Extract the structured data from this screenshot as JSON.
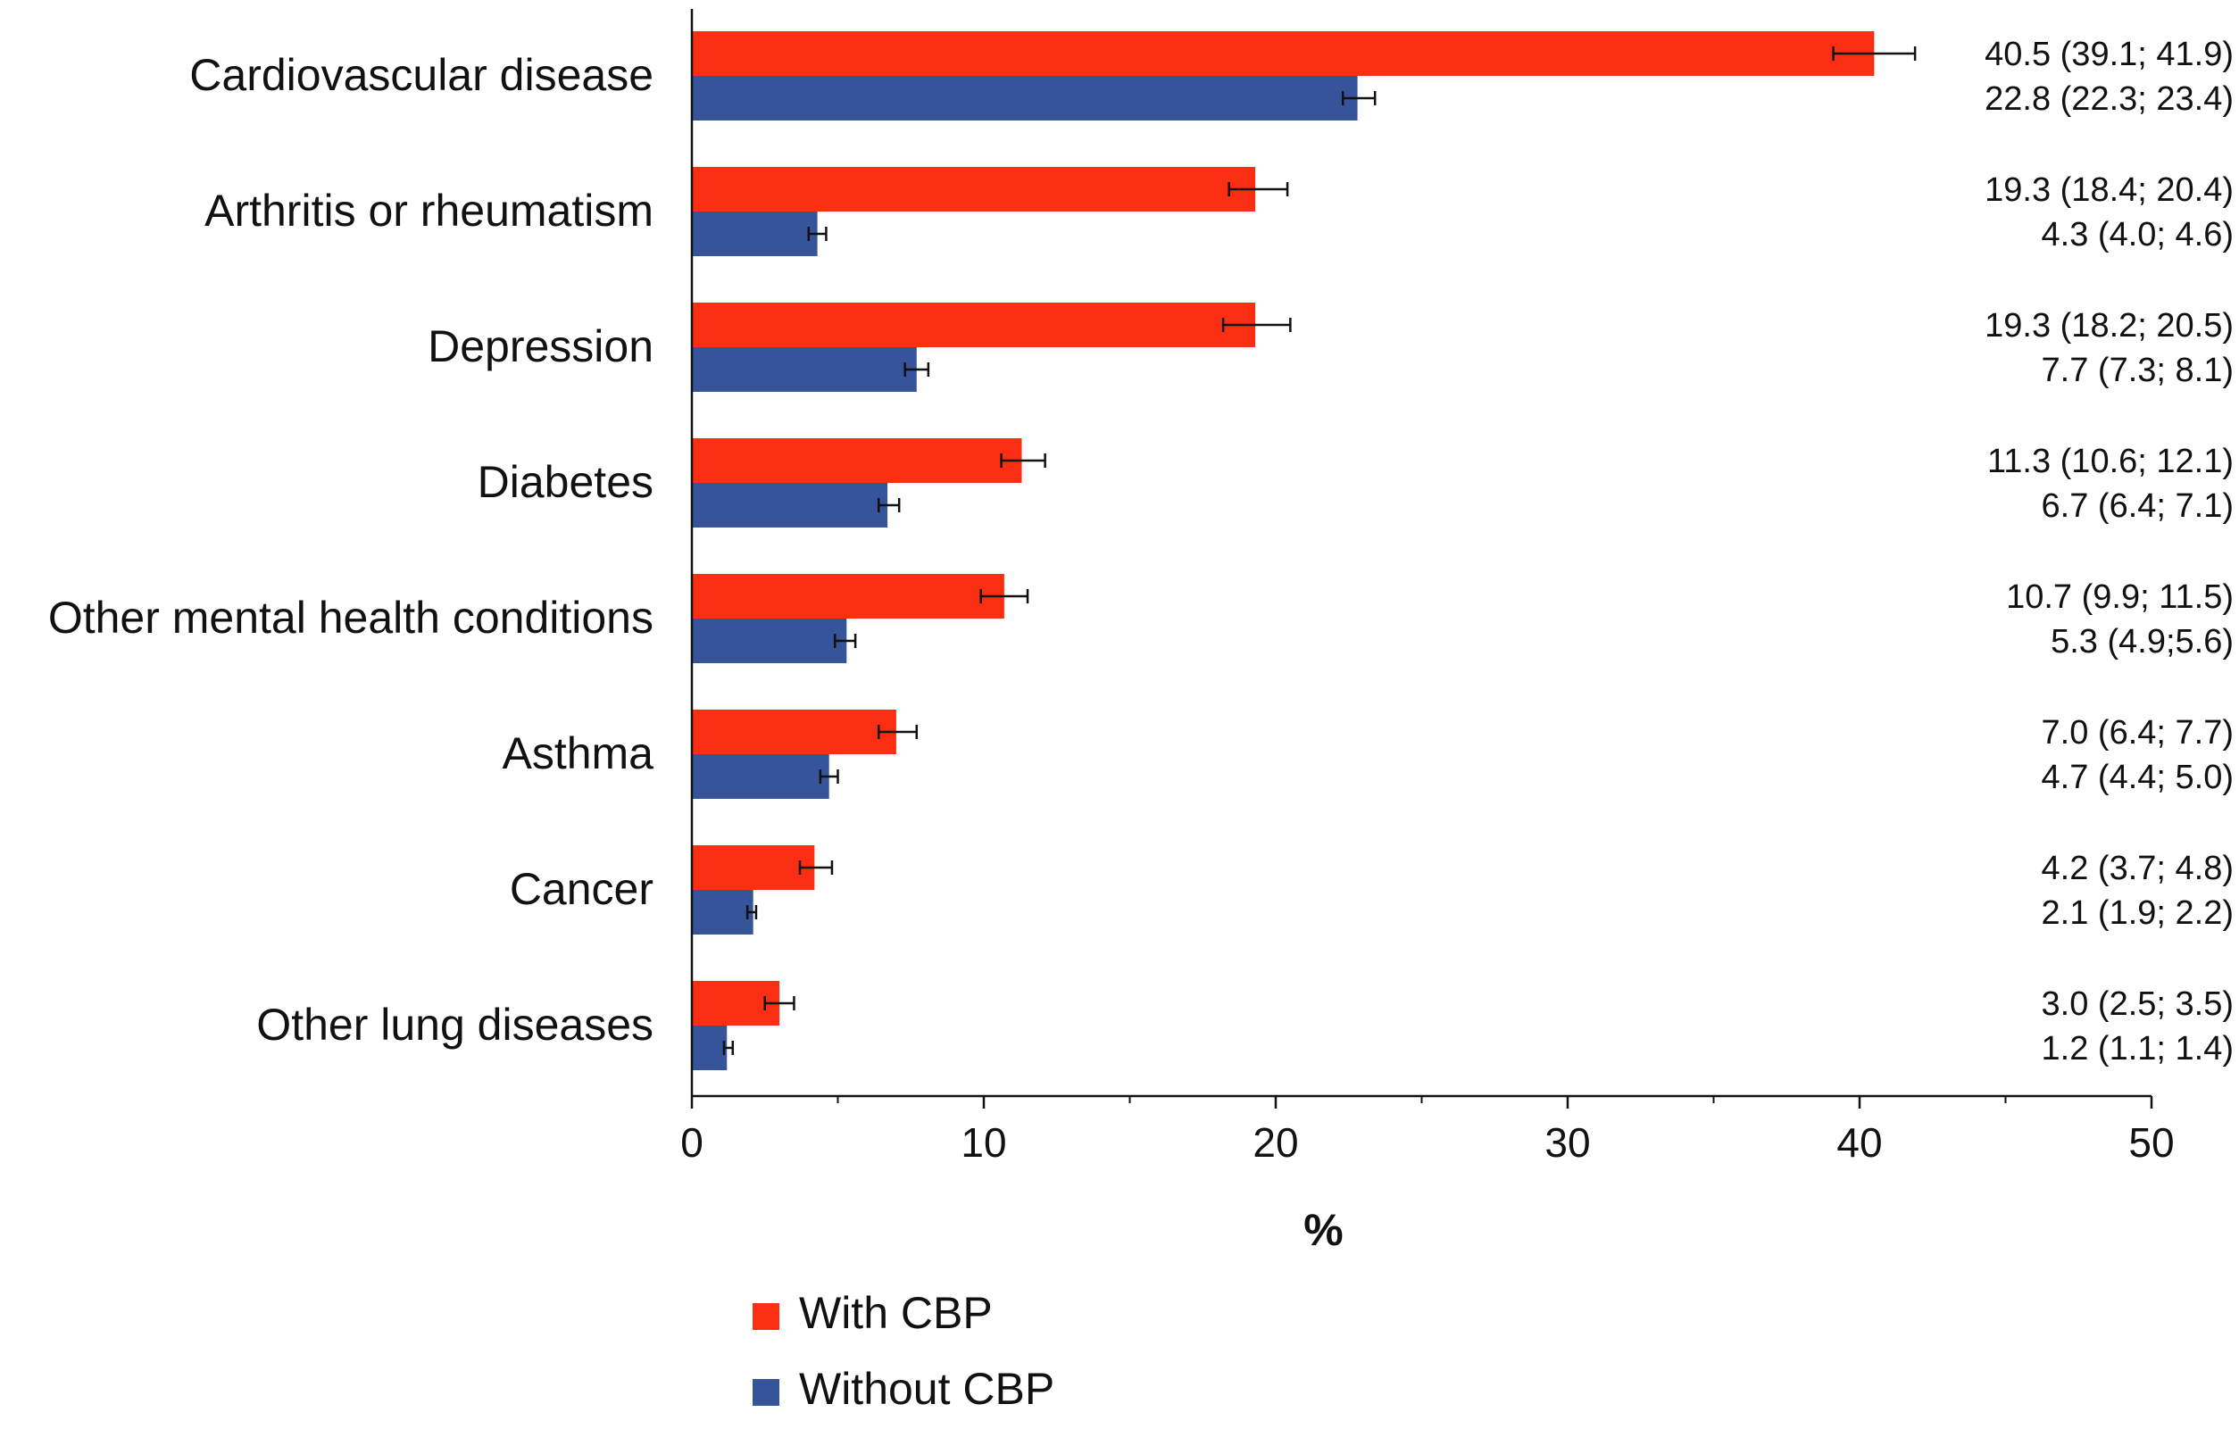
{
  "chart_data": {
    "type": "bar",
    "orientation": "horizontal",
    "categories": [
      "Cardiovascular disease",
      "Arthritis or rheumatism",
      "Depression",
      "Diabetes",
      "Other mental health conditions",
      "Asthma",
      "Cancer",
      "Other lung diseases"
    ],
    "series": [
      {
        "name": "With CBP",
        "color": "#f92e12",
        "values": [
          40.5,
          19.3,
          19.3,
          11.3,
          10.7,
          7.0,
          4.2,
          3.0
        ],
        "ci_low": [
          39.1,
          18.4,
          18.2,
          10.6,
          9.9,
          6.4,
          3.7,
          2.5
        ],
        "ci_high": [
          41.9,
          20.4,
          20.5,
          12.1,
          11.5,
          7.7,
          4.8,
          3.5
        ],
        "labels": [
          "40.5 (39.1; 41.9)",
          "19.3 (18.4; 20.4)",
          "19.3 (18.2; 20.5)",
          "11.3 (10.6; 12.1)",
          "10.7 (9.9; 11.5)",
          "7.0 (6.4; 7.7)",
          "4.2 (3.7; 4.8)",
          "3.0 (2.5; 3.5)"
        ]
      },
      {
        "name": "Without CBP",
        "color": "#35549a",
        "values": [
          22.8,
          4.3,
          7.7,
          6.7,
          5.3,
          4.7,
          2.1,
          1.2
        ],
        "ci_low": [
          22.3,
          4.0,
          7.3,
          6.4,
          4.9,
          4.4,
          1.9,
          1.1
        ],
        "ci_high": [
          23.4,
          4.6,
          8.1,
          7.1,
          5.6,
          5.0,
          2.2,
          1.4
        ],
        "labels": [
          "22.8 (22.3; 23.4)",
          "4.3 (4.0; 4.6)",
          "7.7 (7.3; 8.1)",
          "6.7 (6.4; 7.1)",
          "5.3 (4.9;5.6)",
          "4.7 (4.4; 5.0)",
          "2.1 (1.9; 2.2)",
          "1.2 (1.1; 1.4)"
        ]
      }
    ],
    "x_ticks": [
      "0",
      "10",
      "20",
      "30",
      "40",
      "50"
    ],
    "xlim": [
      0,
      50
    ],
    "xlabel": "%",
    "ylabel": "",
    "title": "",
    "grid": false,
    "legend_position": "bottom"
  }
}
